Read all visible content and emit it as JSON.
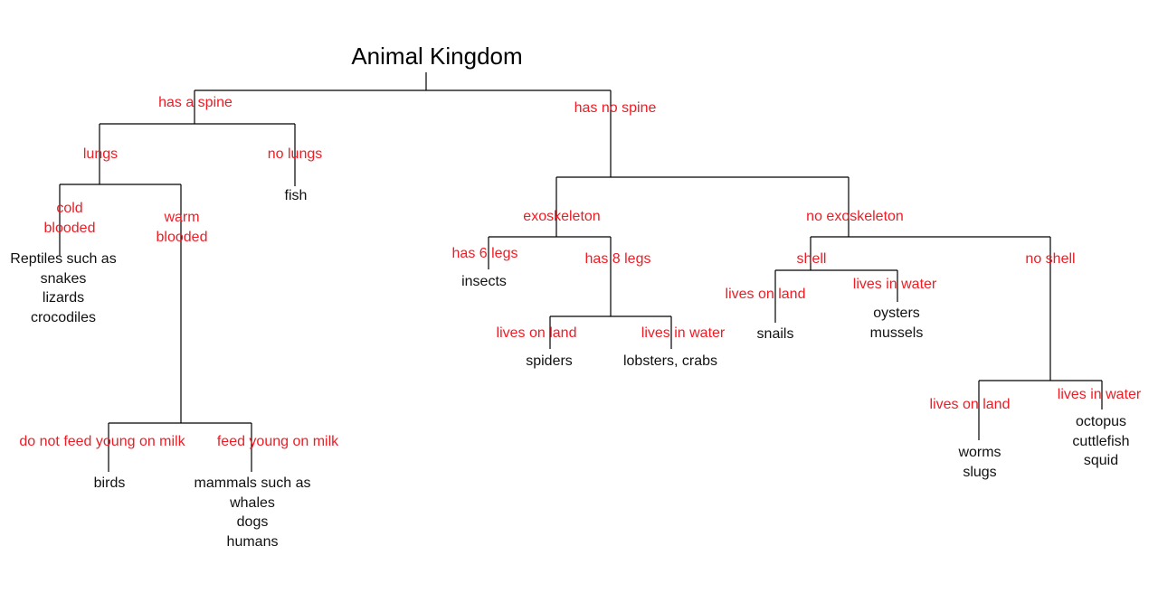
{
  "title": "Animal Kingdom",
  "edges": {
    "has_spine": "has a spine",
    "no_spine": "has no spine",
    "lungs": "lungs",
    "no_lungs": "no lungs",
    "cold_blooded": "cold blooded",
    "warm_blooded": "warm blooded",
    "no_milk": "do not feed young on milk",
    "milk": "feed young on milk",
    "exoskeleton": "exoskeleton",
    "no_exoskeleton": "no exoskeleton",
    "six_legs": "has 6 legs",
    "eight_legs": "has 8 legs",
    "spider_land": "lives on land",
    "spider_water": "lives in water",
    "shell": "shell",
    "no_shell": "no shell",
    "shell_land": "lives on land",
    "shell_water": "lives in water",
    "noshell_land": "lives on land",
    "noshell_water": "lives in water"
  },
  "leaves": {
    "fish": "fish",
    "reptiles": "Reptiles such as\nsnakes\nlizards\ncrocodiles",
    "birds": "birds",
    "mammals": "mammals such as\nwhales\ndogs\nhumans",
    "insects": "insects",
    "spiders": "spiders",
    "lobsters": "lobsters, crabs",
    "snails": "snails",
    "oysters": "oysters\nmussels",
    "worms": "worms\nslugs",
    "octopus": "octopus\ncuttlefish\nsquid"
  }
}
